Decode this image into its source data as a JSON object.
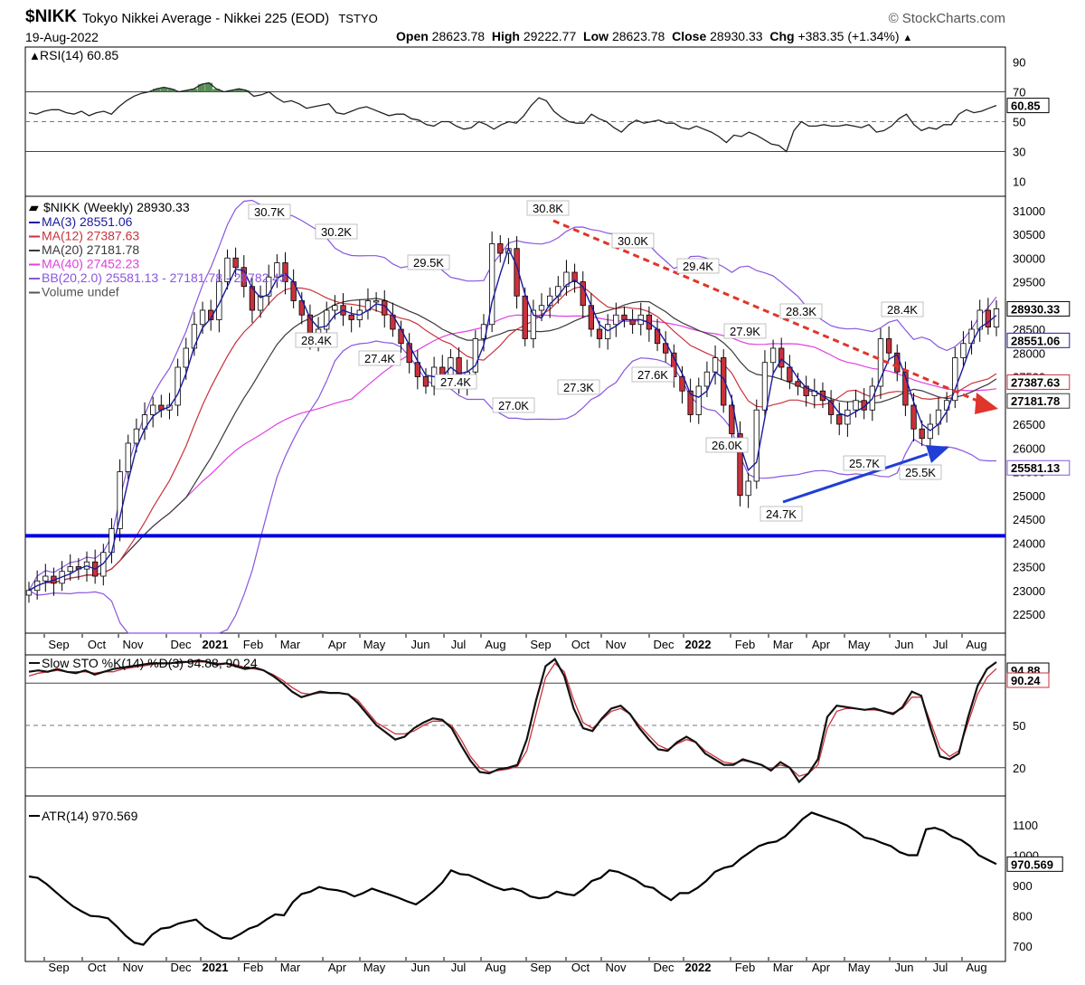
{
  "header": {
    "symbol": "$NIKK",
    "description": "Tokyo Nikkei Average - Nikkei 225 (EOD)",
    "exchange": "TSTYO",
    "date": "19-Aug-2022",
    "source": "© StockCharts.com",
    "open_label": "Open",
    "open": "28623.78",
    "high_label": "High",
    "high": "29222.77",
    "low_label": "Low",
    "low": "28623.78",
    "close_label": "Close",
    "close": "28930.33",
    "chg_label": "Chg",
    "chg": "+383.35 (+1.34%)"
  },
  "colors": {
    "ma3": "#1a1aa0",
    "ma12": "#c8323c",
    "ma20": "#3a3a3a",
    "ma40": "#e040e0",
    "bb": "#8a55e0",
    "support": "#0000e0",
    "trend_down": "#e0352a",
    "trend_up": "#1f3fd6",
    "up_candle": "#ffffff",
    "down_candle": "#c8323c",
    "rsi_fill": "#3a7a3a"
  },
  "chart_data": [
    {
      "type": "line",
      "panel": "RSI",
      "legend": "RSI(14) 60.85",
      "current_value_label": "60.85",
      "ylim": [
        0,
        100
      ],
      "y_ticks": [
        90,
        70,
        50,
        30,
        10
      ],
      "reference_lines": [
        70,
        50,
        30
      ],
      "series": [
        {
          "name": "RSI(14)",
          "values": [
            56,
            55,
            57,
            58,
            58,
            56,
            55,
            57,
            54,
            56,
            57,
            55,
            60,
            64,
            67,
            69,
            70,
            72,
            73,
            72,
            70,
            71,
            72,
            75,
            76,
            72,
            70,
            71,
            72,
            71,
            67,
            68,
            70,
            66,
            63,
            64,
            62,
            59,
            60,
            61,
            62,
            56,
            55,
            57,
            59,
            60,
            58,
            56,
            54,
            55,
            55,
            52,
            51,
            48,
            47,
            50,
            50,
            47,
            45,
            46,
            50,
            48,
            45,
            48,
            50,
            49,
            54,
            61,
            66,
            64,
            57,
            53,
            50,
            49,
            49,
            55,
            52,
            50,
            46,
            43,
            48,
            51,
            49,
            50,
            51,
            49,
            49,
            46,
            45,
            47,
            45,
            43,
            40,
            36,
            41,
            40,
            43,
            41,
            38,
            35,
            34,
            30,
            44,
            50,
            47,
            47,
            48,
            47,
            47,
            48,
            47,
            46,
            48,
            43,
            44,
            47,
            52,
            55,
            48,
            44,
            46,
            45,
            48,
            48,
            55,
            58,
            56,
            57,
            59,
            60.85
          ]
        }
      ]
    },
    {
      "type": "candlestick",
      "panel": "Price",
      "legend": {
        "symbol": "$NIKK (Weekly) 28930.33",
        "ma3": "MA(3) 28551.06",
        "ma12": "MA(12) 27387.63",
        "ma20": "MA(20) 27181.78",
        "ma40": "MA(40) 27452.23",
        "bb": "BB(20,2.0) 25581.13 - 27181.78 - 28782.43",
        "volume": "Volume undef"
      },
      "y_ticks": [
        31000,
        30500,
        30000,
        29500,
        29000,
        28500,
        28000,
        27500,
        27000,
        26500,
        26000,
        25500,
        25000,
        24500,
        24000,
        23500,
        23000,
        22500
      ],
      "ylim": [
        22100,
        31300
      ],
      "right_labels": [
        "28930.33",
        "28551.06",
        "27387.63",
        "27181.78",
        "25581.13"
      ],
      "x_month_labels": [
        "Sep",
        "Oct",
        "Nov",
        "Dec",
        "2021",
        "Feb",
        "Mar",
        "Apr",
        "May",
        "Jun",
        "Jul",
        "Aug",
        "Sep",
        "Oct",
        "Nov",
        "Dec",
        "2022",
        "Feb",
        "Mar",
        "Apr",
        "May",
        "Jun",
        "Jul",
        "Aug"
      ],
      "annotations": [
        "30.7K",
        "30.2K",
        "28.4K",
        "27.4K",
        "29.5K",
        "27.4K",
        "27.0K",
        "30.8K",
        "27.3K",
        "30.0K",
        "27.6K",
        "29.4K",
        "27.9K",
        "26.0K",
        "28.3K",
        "24.7K",
        "25.7K",
        "28.4K",
        "25.5K"
      ],
      "support_level": 24150,
      "close": [
        23000,
        23200,
        23300,
        23150,
        23400,
        23500,
        23450,
        23600,
        23300,
        23800,
        24300,
        25500,
        26100,
        26400,
        26700,
        26900,
        26800,
        26900,
        27700,
        28100,
        28600,
        28900,
        28700,
        29500,
        30000,
        29800,
        29400,
        28900,
        29200,
        29600,
        29900,
        29500,
        29100,
        28800,
        28300,
        28500,
        28900,
        29000,
        28800,
        28700,
        28900,
        29100,
        29100,
        28800,
        28500,
        28200,
        27800,
        27500,
        27300,
        27700,
        27500,
        27900,
        27300,
        27600,
        28300,
        28600,
        30300,
        30100,
        30200,
        29200,
        28300,
        28900,
        29000,
        29200,
        29400,
        29700,
        29500,
        29000,
        28500,
        28300,
        28600,
        28800,
        28700,
        28600,
        28800,
        28500,
        28200,
        28000,
        27500,
        27200,
        26700,
        27300,
        27600,
        27900,
        26900,
        26300,
        25000,
        25300,
        26800,
        27800,
        28100,
        27700,
        27400,
        27300,
        27100,
        27200,
        27000,
        26700,
        26500,
        26800,
        27000,
        26800,
        27300,
        28300,
        28000,
        27600,
        26900,
        26400,
        26200,
        26500,
        26800,
        27000,
        27900,
        28200,
        28500,
        28900,
        28547,
        28930.33
      ]
    },
    {
      "type": "line",
      "panel": "Slow Stochastic",
      "legend": "Slow STO %K(14) %D(3) 94.88, 90.24",
      "current_value_labels": [
        "94.88",
        "90.24"
      ],
      "ylim": [
        0,
        100
      ],
      "y_ticks": [
        80,
        50,
        20
      ],
      "reference_lines": [
        80,
        50,
        20
      ],
      "series": [
        {
          "name": "%K(14)",
          "values": [
            88,
            89,
            88,
            90,
            88,
            87,
            89,
            86,
            88,
            90,
            91,
            92,
            93,
            94,
            94,
            94,
            95,
            95,
            96,
            95,
            93,
            94,
            92,
            90,
            91,
            89,
            85,
            80,
            74,
            70,
            72,
            74,
            73,
            73,
            72,
            66,
            58,
            50,
            45,
            40,
            42,
            48,
            52,
            55,
            54,
            48,
            36,
            25,
            17,
            16,
            19,
            20,
            22,
            40,
            68,
            92,
            97,
            85,
            62,
            48,
            46,
            55,
            62,
            64,
            58,
            48,
            40,
            33,
            32,
            38,
            42,
            38,
            30,
            26,
            22,
            22,
            26,
            24,
            22,
            18,
            24,
            20,
            10,
            16,
            26,
            56,
            64,
            63,
            62,
            61,
            62,
            60,
            58,
            63,
            74,
            71,
            48,
            28,
            26,
            30,
            56,
            78,
            90,
            94.88
          ]
        },
        {
          "name": "%D(3)",
          "values": [
            85,
            87,
            88,
            89,
            88,
            88,
            88,
            87,
            88,
            88,
            90,
            91,
            92,
            93,
            94,
            94,
            94,
            95,
            95,
            95,
            94,
            94,
            93,
            91,
            90,
            89,
            86,
            82,
            77,
            73,
            72,
            73,
            73,
            73,
            72,
            68,
            60,
            52,
            48,
            44,
            44,
            46,
            50,
            53,
            53,
            50,
            40,
            28,
            20,
            17,
            18,
            19,
            21,
            32,
            58,
            84,
            94,
            88,
            68,
            52,
            48,
            54,
            60,
            62,
            58,
            50,
            43,
            36,
            33,
            37,
            40,
            38,
            32,
            28,
            24,
            23,
            25,
            24,
            22,
            19,
            22,
            20,
            14,
            16,
            22,
            48,
            60,
            62,
            62,
            61,
            61,
            60,
            59,
            62,
            70,
            70,
            52,
            34,
            28,
            32,
            52,
            72,
            84,
            90.24
          ]
        }
      ]
    },
    {
      "type": "line",
      "panel": "ATR",
      "legend": "ATR(14) 970.569",
      "current_value_label": "970.569",
      "ylim": [
        650,
        1180
      ],
      "y_ticks": [
        1100,
        1000,
        900,
        800,
        700
      ],
      "x_month_labels": [
        "Sep",
        "Oct",
        "Nov",
        "Dec",
        "2021",
        "Feb",
        "Mar",
        "Apr",
        "May",
        "Jun",
        "Jul",
        "Aug",
        "Sep",
        "Oct",
        "Nov",
        "Dec",
        "2022",
        "Feb",
        "Mar",
        "Apr",
        "May",
        "Jun",
        "Jul",
        "Aug"
      ],
      "series": [
        {
          "name": "ATR(14)",
          "values": [
            930,
            925,
            905,
            880,
            855,
            832,
            815,
            800,
            798,
            792,
            765,
            735,
            712,
            705,
            738,
            758,
            762,
            775,
            782,
            788,
            762,
            745,
            728,
            725,
            740,
            758,
            768,
            788,
            805,
            802,
            845,
            872,
            880,
            895,
            888,
            885,
            878,
            864,
            875,
            890,
            880,
            870,
            860,
            848,
            838,
            858,
            882,
            910,
            950,
            938,
            935,
            922,
            908,
            895,
            885,
            890,
            882,
            864,
            858,
            862,
            880,
            872,
            868,
            888,
            915,
            925,
            950,
            945,
            932,
            918,
            898,
            892,
            870,
            852,
            875,
            875,
            892,
            915,
            945,
            958,
            965,
            990,
            1010,
            1030,
            1040,
            1045,
            1062,
            1090,
            1120,
            1140,
            1130,
            1120,
            1110,
            1098,
            1080,
            1058,
            1052,
            1040,
            1030,
            1010,
            1000,
            1000,
            1085,
            1090,
            1080,
            1060,
            1050,
            1030,
            1000,
            985,
            970.569
          ]
        }
      ]
    }
  ]
}
